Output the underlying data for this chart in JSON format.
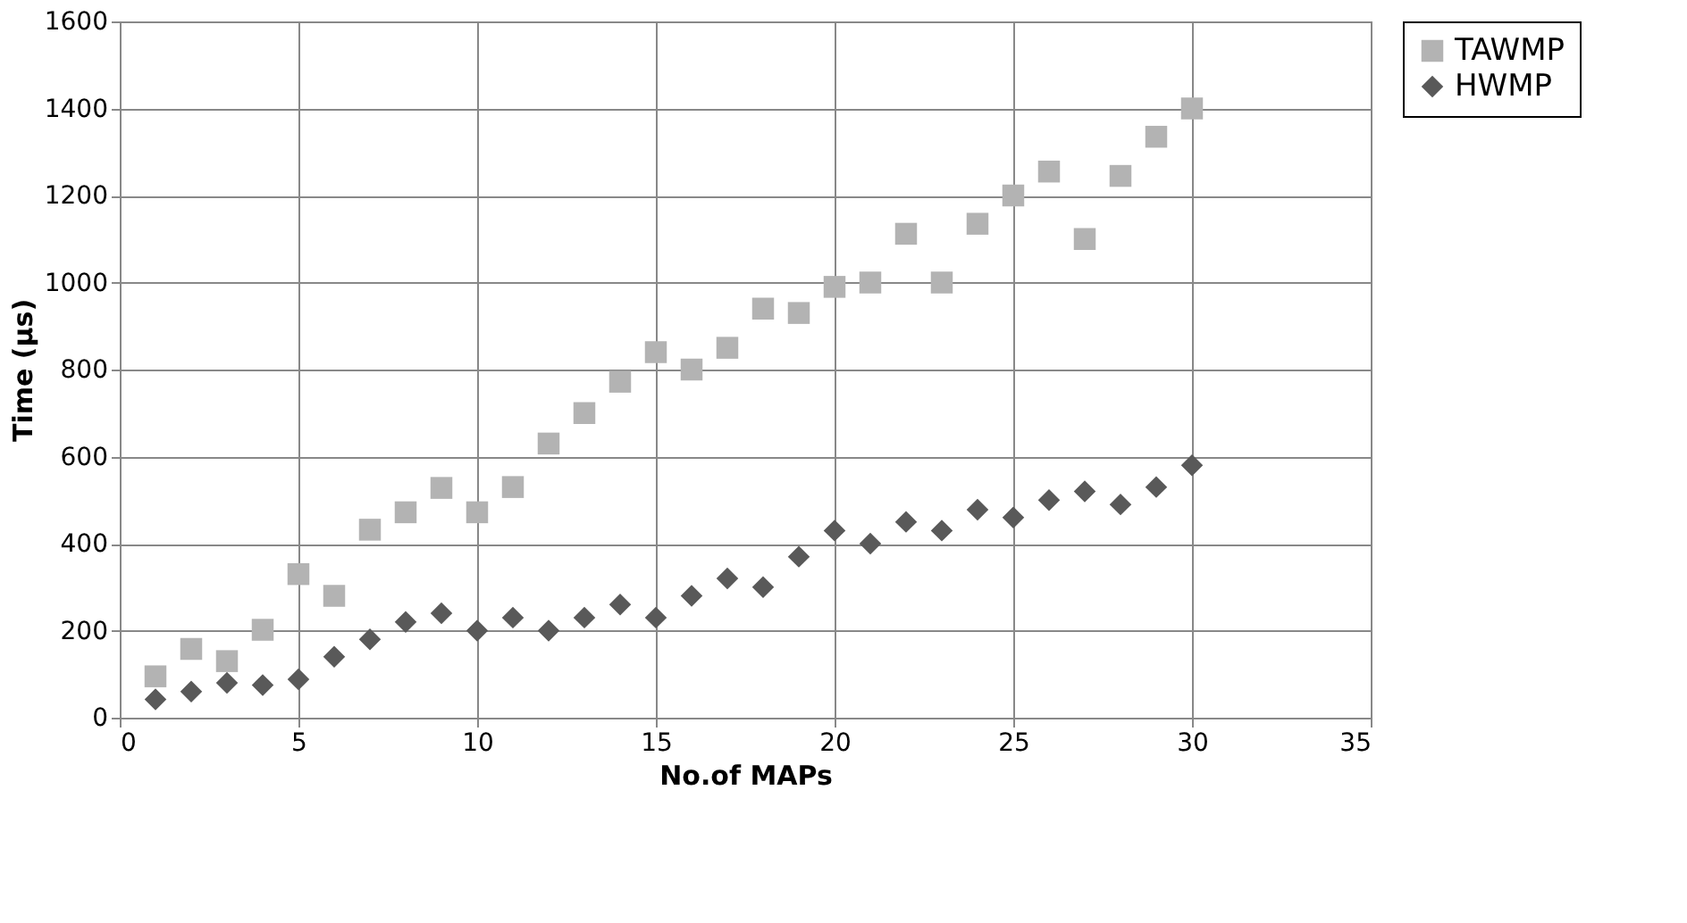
{
  "chart_data": {
    "type": "scatter",
    "xlabel": "No.of MAPs",
    "ylabel": "Time (µs)",
    "x": [
      1,
      2,
      3,
      4,
      5,
      6,
      7,
      8,
      9,
      10,
      11,
      12,
      13,
      14,
      15,
      16,
      17,
      18,
      19,
      20,
      21,
      22,
      23,
      24,
      25,
      26,
      27,
      28,
      29,
      30
    ],
    "series": [
      {
        "name": "TAWMP",
        "color": "#b3b3b3",
        "marker": "square",
        "values": [
          95,
          158,
          130,
          202,
          330,
          280,
          432,
          472,
          528,
          472,
          530,
          630,
          700,
          772,
          840,
          800,
          850,
          940,
          930,
          990,
          1000,
          1112,
          1000,
          1135,
          1200,
          1255,
          1100,
          1245,
          1335,
          1400
        ]
      },
      {
        "name": "HWMP",
        "color": "#595959",
        "marker": "diamond",
        "values": [
          42,
          60,
          80,
          75,
          88,
          140,
          180,
          220,
          240,
          200,
          230,
          200,
          230,
          260,
          230,
          280,
          320,
          300,
          370,
          430,
          400,
          450,
          430,
          478,
          460,
          500,
          520,
          490,
          530,
          580
        ]
      }
    ],
    "xlim": [
      0,
      35
    ],
    "xticks": [
      0,
      5,
      10,
      15,
      20,
      25,
      30,
      35
    ],
    "ylim": [
      0,
      1600
    ],
    "yticks": [
      0,
      200,
      400,
      600,
      800,
      1000,
      1200,
      1400,
      1600
    ],
    "grid": true,
    "legend": "top right"
  }
}
